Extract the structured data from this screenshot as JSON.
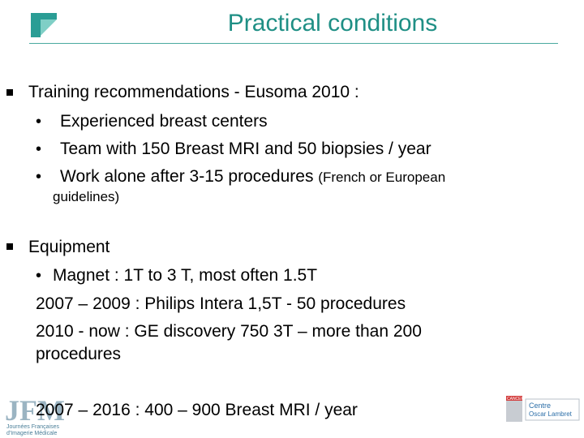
{
  "slide": {
    "title": "Practical conditions",
    "section1": {
      "heading": "Training recommendations  - Eusoma 2010 :",
      "bullets": [
        "Experienced breast centers",
        "Team with 150 Breast MRI and 50 biopsies / year"
      ],
      "bullet3_main": "Work alone after  3-15 procedures",
      "bullet3_note_a": "(French or European",
      "bullet3_note_b": "guidelines)"
    },
    "section2": {
      "heading": "Equipment",
      "bullet": "Magnet : 1T to 3 T, most often 1.5T",
      "line1": "2007 – 2009 : Philips Intera 1,5T - 50 procedures",
      "line2a": "2010 - now : GE discovery 750 3T – more than 200",
      "line2b": "procedures"
    },
    "footer_line": "2007 – 2016 : 400 – 900 Breast MRI / year"
  },
  "logos": {
    "jfm_letters": "JFM",
    "jfm_caption_1": "Journées Françaises",
    "jfm_caption_2": "d'Imagerie Médicale",
    "oscar_1": "Centre",
    "oscar_2": "Oscar Lambret",
    "oscar_badge": "CANCER"
  },
  "colors": {
    "title": "#1f8f85",
    "rule": "#4aa9a0",
    "logo_teal": "#2a9d95"
  }
}
